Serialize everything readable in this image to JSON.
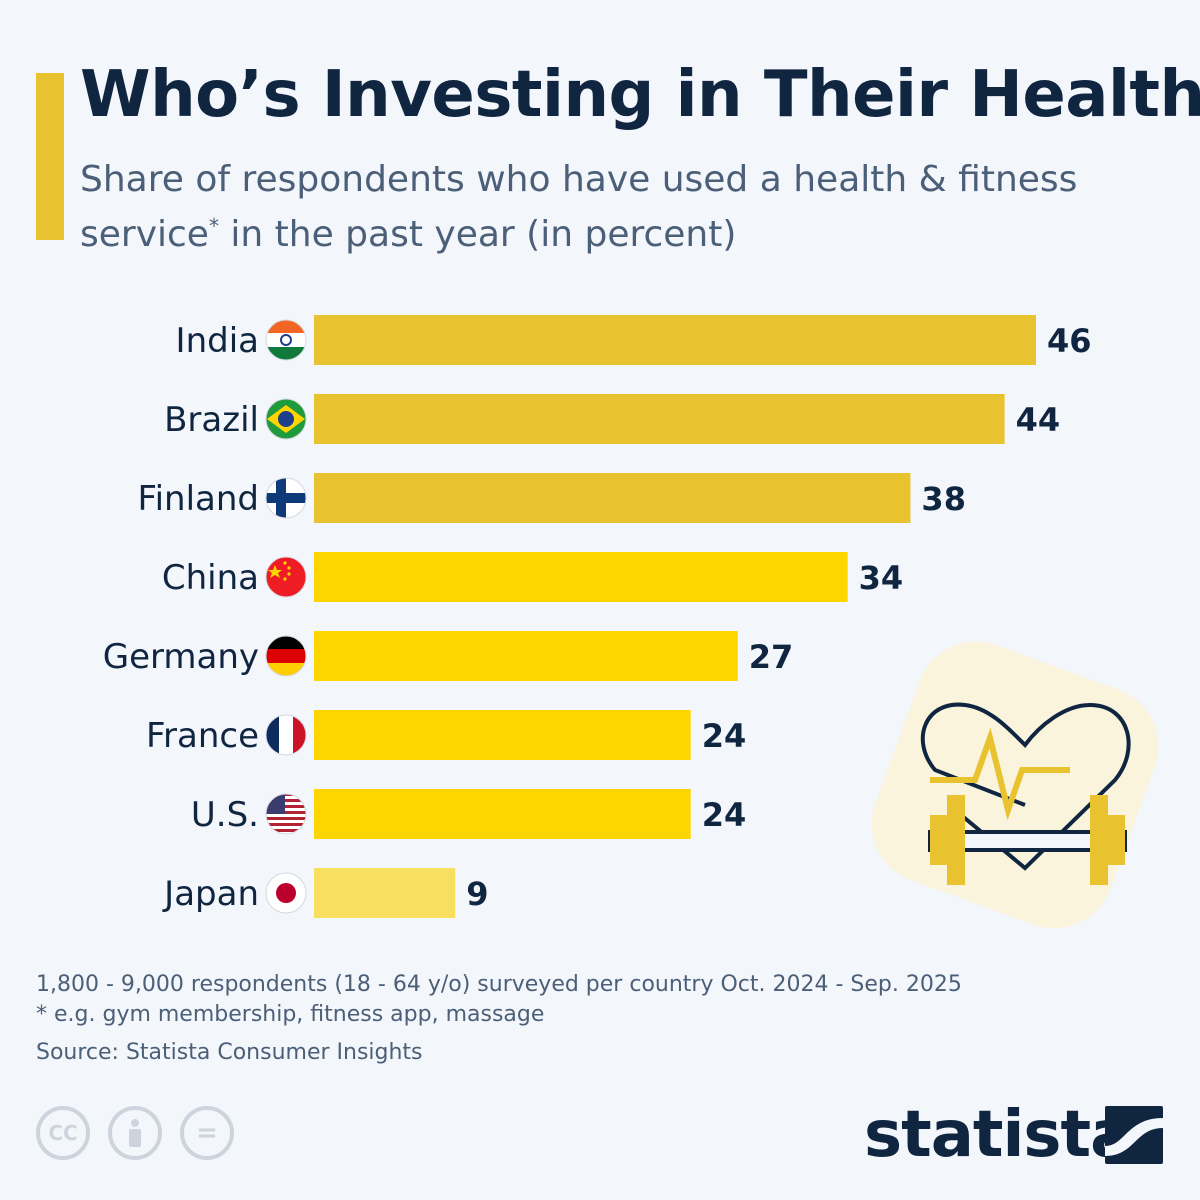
{
  "title": "Who’s Investing in Their Health?",
  "subtitle_line1": "Share of respondents who have used a health & fitness",
  "subtitle_line2a": "service",
  "subtitle_sup": "*",
  "subtitle_line2b": " in the past year (in percent)",
  "chart_data": {
    "type": "bar",
    "orientation": "horizontal",
    "categories": [
      "India",
      "Brazil",
      "Finland",
      "China",
      "Germany",
      "France",
      "U.S.",
      "Japan"
    ],
    "values": [
      46,
      44,
      38,
      34,
      27,
      24,
      24,
      9
    ],
    "colors": [
      "#e9c22f",
      "#e9c22f",
      "#e9c22f",
      "#ffd500",
      "#ffd500",
      "#ffd500",
      "#ffd500",
      "#f9df60"
    ],
    "flags": [
      "india-flag",
      "brazil-flag",
      "finland-flag",
      "china-flag",
      "germany-flag",
      "france-flag",
      "us-flag",
      "japan-flag"
    ],
    "xlim": [
      0,
      46
    ],
    "data_labels": true,
    "grid": false
  },
  "notes": {
    "line1": "1,800 - 9,000 respondents (18 - 64 y/o) surveyed per country Oct. 2024 - Sep. 2025",
    "line2": "* e.g. gym membership, fitness app, massage"
  },
  "source": "Source: Statista Consumer Insights",
  "license_icons": {
    "cc": "CC",
    "by": "person-icon",
    "nd": "="
  },
  "brand": "statista",
  "colors": {
    "accent": "#e9c22f",
    "text": "#0f2540",
    "muted": "#4b5f78"
  }
}
